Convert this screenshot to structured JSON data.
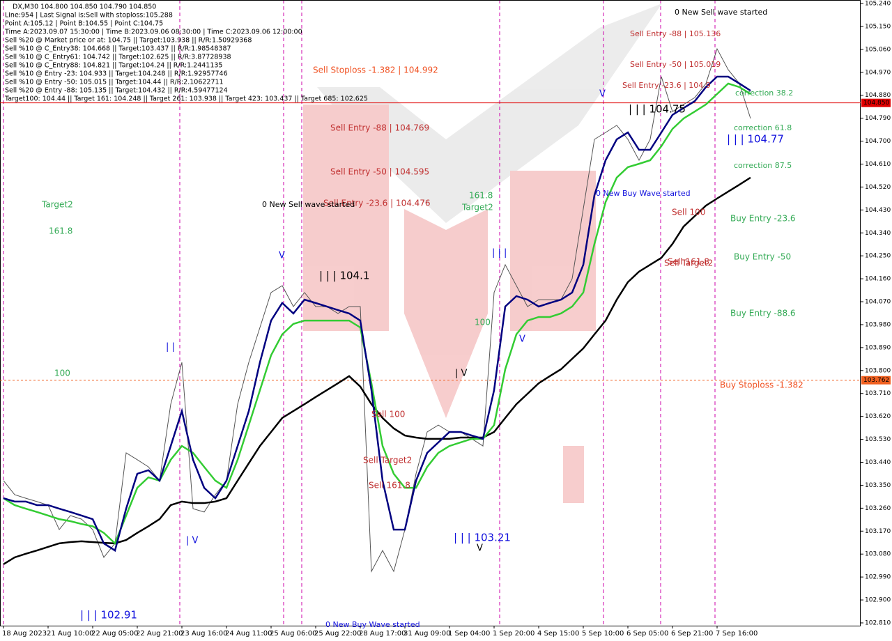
{
  "chart_data": {
    "type": "line",
    "info_lines": [
      "DX,M30  104.800 104.850 104.790 104.850",
      "Line:954 | Last Signal is:Sell with stoploss:105.288",
      "Point A:105.12 | Point B:104.55 | Point C:104.75",
      "Time A:2023.09.07 15:30:00 | Time B:2023.09.06 08:30:00 | Time C:2023.09.06 12:00:00",
      "Sell %20 @ Market price or at: 104.75 || Target:103.938 || R/R:1.50929368",
      "Sell %10 @ C_Entry38: 104.668 || Target:103.437 || R/R:1.98548387",
      "Sell %10 @ C_Entry61: 104.742 || Target:102.625 || R/R:3.87728938",
      "Sell %10 @ C_Entry88: 104.821 || Target:104.24 || R/R:1.2441135",
      "Sell %10 @ Entry -23: 104.933 || Target:104.248 || R/R:1.92957746",
      "Sell %10 @ Entry -50: 105.015 || Target:104.44 || R/R:2.10622711",
      "Sell %20 @ Entry -88: 105.135 || Target:104.432 || R/R:4.59477124",
      "Target100: 104.44 || Target 161: 104.248 || Target 261: 103.938 || Target 423: 103.437 || Target 685: 102.625"
    ],
    "annotations": [
      "0 New Sell wave started",
      "Sell Entry -88 | 105.136",
      "Sell Entry -50 | 105.019",
      "Sell Entry -23.6 | 104.9",
      "correction 38.2",
      "| | | 104.75",
      "correction 61.8",
      "| | | 104.77",
      "correction 87.5",
      "0 New Buy Wave started",
      "Sell 100",
      "Buy Entry -23.6",
      "Buy Entry -50",
      "Sell 161.8",
      "Sell Target2",
      "Buy Entry -88.6",
      "Buy Stoploss -1.382",
      "Sell Stoploss -1.382 | 104.992",
      "Sell Entry -88 | 104.769",
      "Sell Entry -50 | 104.595",
      "Sell Entry -23.6 | 104.476",
      "0 New Sell wave started",
      "161.8",
      "Target2",
      "Target2",
      "161.8",
      "100",
      "100",
      "| | | 104.1",
      "| V",
      "| |",
      "| V",
      "V",
      "| | |",
      "V",
      "V",
      "V",
      "Sell 100",
      "Sell Target2",
      "Sell 161.8",
      "| | | 102.91",
      "| | | 103.21",
      "0 New Buy Wave started"
    ],
    "categories": [
      "18 Aug 2023",
      null,
      null,
      null,
      "21 Aug 10:00",
      null,
      null,
      null,
      "22 Aug 05:00",
      null,
      null,
      null,
      "22 Aug 21:00",
      null,
      null,
      null,
      "23 Aug 16:00",
      null,
      null,
      null,
      "24 Aug 11:00",
      null,
      null,
      null,
      "25 Aug 06:00",
      null,
      null,
      null,
      "25 Aug 22:00",
      null,
      null,
      null,
      "28 Aug 17:00",
      null,
      null,
      null,
      "31 Aug 09:00",
      null,
      null,
      null,
      "1 Sep 04:00",
      null,
      null,
      null,
      "1 Sep 20:00",
      null,
      null,
      null,
      "4 Sep 15:00",
      null,
      null,
      null,
      "5 Sep 10:00",
      null,
      null,
      null,
      "6 Sep 05:00",
      null,
      null,
      null,
      "6 Sep 21:00",
      null,
      null,
      null,
      "7 Sep 16:00",
      null,
      null,
      null
    ],
    "series": [
      {
        "color": "#555555",
        "values": [
          103.368,
          103.313,
          103.299,
          103.286,
          103.272,
          103.176,
          103.231,
          103.217,
          103.176,
          103.067,
          103.122,
          103.477,
          103.45,
          103.422,
          103.368,
          103.668,
          103.832,
          103.258,
          103.245,
          103.313,
          103.368,
          103.668,
          103.832,
          103.969,
          104.106,
          104.133,
          104.051,
          104.106,
          104.051,
          104.051,
          104.024,
          104.051,
          104.051,
          103.012,
          103.094,
          103.012,
          103.176,
          103.395,
          103.559,
          103.586,
          103.559,
          103.559,
          103.532,
          103.504,
          104.106,
          104.215,
          104.133,
          104.051,
          104.078,
          104.078,
          104.078,
          104.16,
          104.434,
          104.707,
          104.734,
          104.762,
          104.707,
          104.625,
          104.707,
          104.953,
          104.816,
          104.844,
          104.871,
          104.926,
          105.062,
          104.98,
          104.926,
          104.789
        ]
      },
      {
        "color": "#000000",
        "values": [
          103.04,
          103.067,
          103.081,
          103.094,
          103.108,
          103.122,
          103.127,
          103.13,
          103.127,
          103.124,
          103.122,
          103.135,
          103.163,
          103.189,
          103.217,
          103.272,
          103.286,
          103.28,
          103.28,
          103.286,
          103.299,
          103.368,
          103.436,
          103.504,
          103.559,
          103.614,
          103.641,
          103.668,
          103.696,
          103.723,
          103.75,
          103.778,
          103.737,
          103.668,
          103.614,
          103.573,
          103.545,
          103.537,
          103.532,
          103.532,
          103.532,
          103.537,
          103.537,
          103.537,
          103.559,
          103.614,
          103.668,
          103.709,
          103.75,
          103.778,
          103.805,
          103.846,
          103.887,
          103.942,
          103.996,
          104.078,
          104.147,
          104.188,
          104.215,
          104.242,
          104.297,
          104.365,
          104.406,
          104.447,
          104.475,
          104.502,
          104.529,
          104.557
        ]
      },
      {
        "color": "#33cc33",
        "values": [
          103.299,
          103.272,
          103.258,
          103.245,
          103.231,
          103.217,
          103.209,
          103.198,
          103.189,
          103.163,
          103.122,
          103.231,
          103.34,
          103.381,
          103.368,
          103.45,
          103.504,
          103.477,
          103.422,
          103.368,
          103.34,
          103.45,
          103.586,
          103.723,
          103.86,
          103.942,
          103.983,
          103.996,
          103.996,
          103.996,
          103.996,
          103.996,
          103.969,
          103.75,
          103.504,
          103.395,
          103.34,
          103.34,
          103.422,
          103.477,
          103.504,
          103.518,
          103.532,
          103.532,
          103.586,
          103.805,
          103.942,
          103.996,
          104.01,
          104.01,
          104.024,
          104.051,
          104.106,
          104.297,
          104.461,
          104.557,
          104.598,
          104.611,
          104.625,
          104.68,
          104.748,
          104.789,
          104.816,
          104.844,
          104.885,
          104.926,
          104.912,
          104.885
        ]
      },
      {
        "color": "#000080",
        "values": [
          103.299,
          103.286,
          103.286,
          103.272,
          103.272,
          103.258,
          103.245,
          103.231,
          103.217,
          103.122,
          103.094,
          103.258,
          103.395,
          103.409,
          103.368,
          103.504,
          103.641,
          103.45,
          103.34,
          103.299,
          103.368,
          103.504,
          103.641,
          103.832,
          103.996,
          104.065,
          104.024,
          104.078,
          104.065,
          104.051,
          104.037,
          104.024,
          103.996,
          103.723,
          103.368,
          103.176,
          103.176,
          103.368,
          103.477,
          103.518,
          103.559,
          103.559,
          103.545,
          103.532,
          103.723,
          104.051,
          104.092,
          104.078,
          104.051,
          104.065,
          104.078,
          104.106,
          104.215,
          104.488,
          104.625,
          104.707,
          104.734,
          104.666,
          104.666,
          104.734,
          104.803,
          104.83,
          104.857,
          104.912,
          104.953,
          104.953,
          104.926,
          104.898
        ]
      }
    ],
    "price_levels": [
      {
        "value": 104.85,
        "label": "104.850",
        "color": "#e00000"
      },
      {
        "value": 103.762,
        "label": "103.762",
        "color": "#f06020"
      }
    ],
    "ylim": [
      102.81,
      105.24
    ],
    "yticks": [
      {
        "value": 105.24,
        "label": "105.240"
      },
      {
        "value": 105.15,
        "label": "105.150"
      },
      {
        "value": 105.06,
        "label": "105.060"
      },
      {
        "value": 104.97,
        "label": "104.970"
      },
      {
        "value": 104.88,
        "label": "104.880"
      },
      {
        "value": 104.79,
        "label": "104.790"
      },
      {
        "value": 104.7,
        "label": "104.700"
      },
      {
        "value": 104.61,
        "label": "104.610"
      },
      {
        "value": 104.52,
        "label": "104.520"
      },
      {
        "value": 104.43,
        "label": "104.430"
      },
      {
        "value": 104.34,
        "label": "104.340"
      },
      {
        "value": 104.25,
        "label": "104.250"
      },
      {
        "value": 104.16,
        "label": "104.160"
      },
      {
        "value": 104.07,
        "label": "104.070"
      },
      {
        "value": 103.98,
        "label": "103.980"
      },
      {
        "value": 103.89,
        "label": "103.890"
      },
      {
        "value": 103.8,
        "label": "103.800"
      },
      {
        "value": 103.71,
        "label": "103.710"
      },
      {
        "value": 103.62,
        "label": "103.620"
      },
      {
        "value": 103.53,
        "label": "103.530"
      },
      {
        "value": 103.44,
        "label": "103.440"
      },
      {
        "value": 103.35,
        "label": "103.350"
      },
      {
        "value": 103.26,
        "label": "103.260"
      },
      {
        "value": 103.17,
        "label": "103.170"
      },
      {
        "value": 103.08,
        "label": "103.080"
      },
      {
        "value": 102.99,
        "label": "102.990"
      },
      {
        "value": 102.9,
        "label": "102.900"
      },
      {
        "value": 102.81,
        "label": "102.810"
      }
    ]
  }
}
